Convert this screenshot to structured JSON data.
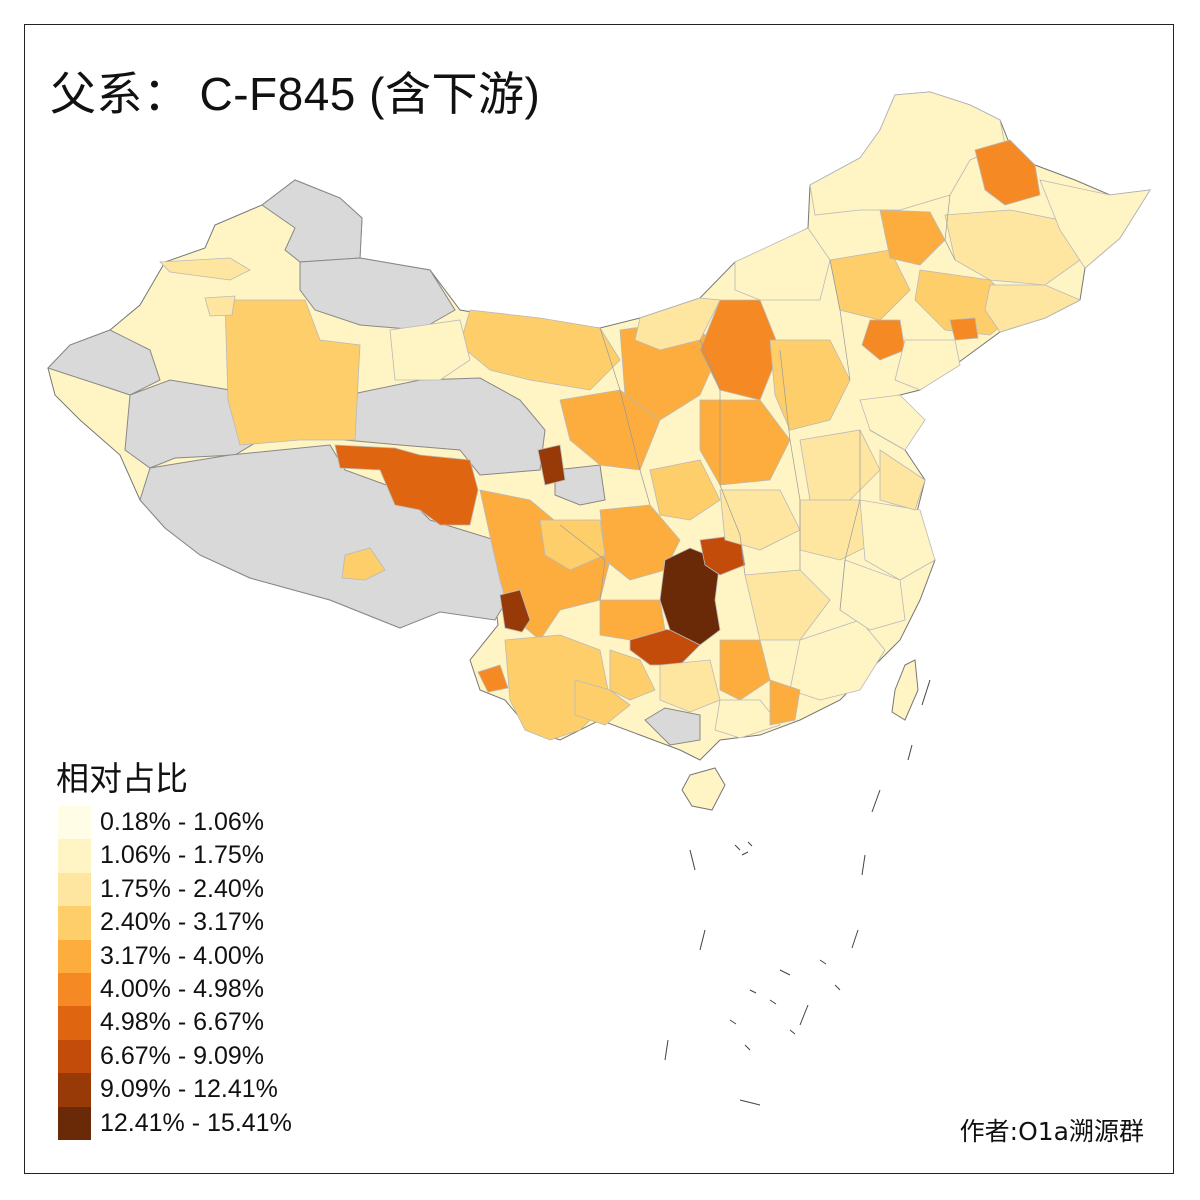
{
  "map": {
    "title_prefix": "父系：",
    "title_main": "C-F845 (含下游)",
    "legend_title": "相对占比",
    "author": "作者:O1a溯源群",
    "no_data_color": "#d9d9d9",
    "legend": [
      {
        "label": "0.18% - 1.06%",
        "color": "#fffde6"
      },
      {
        "label": "1.06% - 1.75%",
        "color": "#fff4c4"
      },
      {
        "label": "1.75% - 2.40%",
        "color": "#fee6a0"
      },
      {
        "label": "2.40% - 3.17%",
        "color": "#fece6a"
      },
      {
        "label": "3.17% - 4.00%",
        "color": "#fdad3e"
      },
      {
        "label": "4.00% - 4.98%",
        "color": "#f58a24"
      },
      {
        "label": "4.98% - 6.67%",
        "color": "#e06511"
      },
      {
        "label": "6.67% - 9.09%",
        "color": "#c44c0a"
      },
      {
        "label": "9.09% - 12.41%",
        "color": "#983a07"
      },
      {
        "label": "12.41% - 15.41%",
        "color": "#6a2a08"
      }
    ]
  }
}
